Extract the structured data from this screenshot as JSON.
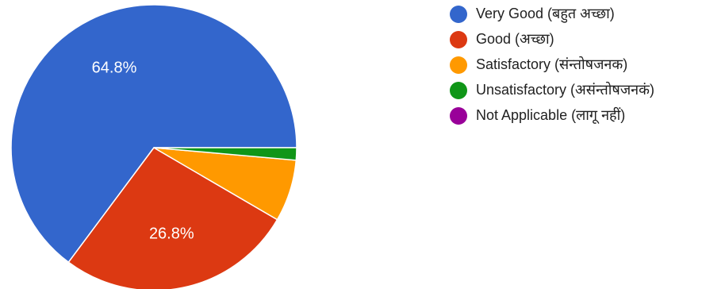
{
  "chart_data": {
    "type": "pie",
    "categories": [
      "Very Good (बहुत अच्छा)",
      "Good (अच्छा)",
      "Satisfactory (संन्तोषजनक)",
      "Unsatisfactory (असंन्तोषजनकं)",
      "Not Applicable (लागू नहीं)"
    ],
    "values": [
      64.8,
      26.8,
      7.0,
      1.4,
      0.0
    ],
    "value_labels": [
      "64.8%",
      "26.8%",
      "",
      "",
      ""
    ],
    "colors": [
      "#3366cc",
      "#dc3912",
      "#ff9900",
      "#109618",
      "#990099"
    ],
    "legend_position": "right"
  }
}
